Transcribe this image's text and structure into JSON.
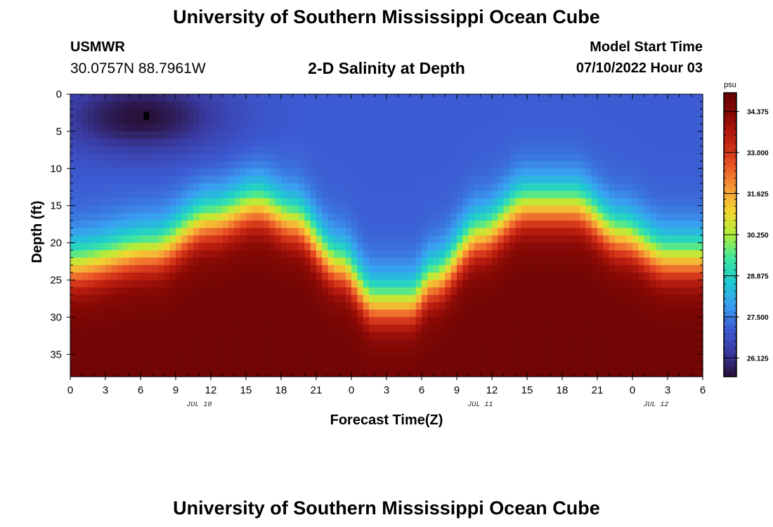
{
  "header": {
    "title": "University of Southern Mississippi Ocean Cube",
    "station": "USMWR",
    "coords": "30.0757N  88.7961W",
    "subtitle": "2-D Salinity at Depth",
    "model_start_label": "Model Start Time",
    "model_start_value": "07/10/2022 Hour 03"
  },
  "footer": {
    "title": "University of Southern Mississippi Ocean Cube"
  },
  "colors": {
    "colormap": [
      "#281038",
      "#3a3aa0",
      "#3c5ad2",
      "#3a9ef2",
      "#1ecad0",
      "#3ee6a0",
      "#b0ee38",
      "#f2d430",
      "#f69838",
      "#e84f24",
      "#c02010",
      "#8c0a06",
      "#680404"
    ]
  },
  "chart_data": {
    "type": "heatmap",
    "title": "2-D Salinity at Depth",
    "xlabel": "Forecast Time(Z)",
    "ylabel": "Depth (ft)",
    "x_range_hours": [
      0,
      54
    ],
    "ylim": [
      0,
      38
    ],
    "y_inverted": true,
    "x_ticks": [
      "0",
      "3",
      "6",
      "9",
      "12",
      "15",
      "18",
      "21",
      "0",
      "3",
      "6",
      "9",
      "12",
      "15",
      "18",
      "21",
      "0",
      "3",
      "6"
    ],
    "x_tick_hours": [
      0,
      3,
      6,
      9,
      12,
      15,
      18,
      21,
      24,
      27,
      30,
      33,
      36,
      39,
      42,
      45,
      48,
      51,
      54
    ],
    "y_ticks": [
      0,
      5,
      10,
      15,
      20,
      25,
      30,
      35
    ],
    "date_labels": [
      {
        "label": "JUL 10",
        "hour": 11
      },
      {
        "label": "JUL 11",
        "hour": 35
      },
      {
        "label": "JUL 12",
        "hour": 50
      }
    ],
    "colorbar": {
      "unit": "psu",
      "min": 25.5,
      "max": 35.0,
      "ticks": [
        26.125,
        27.5,
        28.875,
        30.25,
        31.625,
        33.0,
        34.375
      ],
      "tick_labels": [
        "26.125",
        "27.500",
        "28.875",
        "30.250",
        "31.625",
        "33.000",
        "34.375"
      ]
    },
    "marker": {
      "hour": 6.5,
      "depth": 3
    },
    "field_model": {
      "description": "salinity (psu) vs forecast hour and depth, estimated from colors",
      "surface_psu": 27.1,
      "bottom_psu": 34.8,
      "interface_depth_keypoints": [
        [
          0,
          23
        ],
        [
          7,
          21
        ],
        [
          12,
          17
        ],
        [
          16,
          15
        ],
        [
          19,
          17
        ],
        [
          23,
          23
        ],
        [
          26,
          28
        ],
        [
          29,
          28
        ],
        [
          31,
          25
        ],
        [
          35,
          19
        ],
        [
          39,
          15
        ],
        [
          43,
          15
        ],
        [
          47,
          19
        ],
        [
          51,
          22
        ],
        [
          54,
          22
        ]
      ],
      "low_patch": {
        "center_hour": 6,
        "center_depth": 3,
        "radius_hours": 7,
        "radius_depth": 5,
        "min_psu": 25.5
      }
    }
  }
}
